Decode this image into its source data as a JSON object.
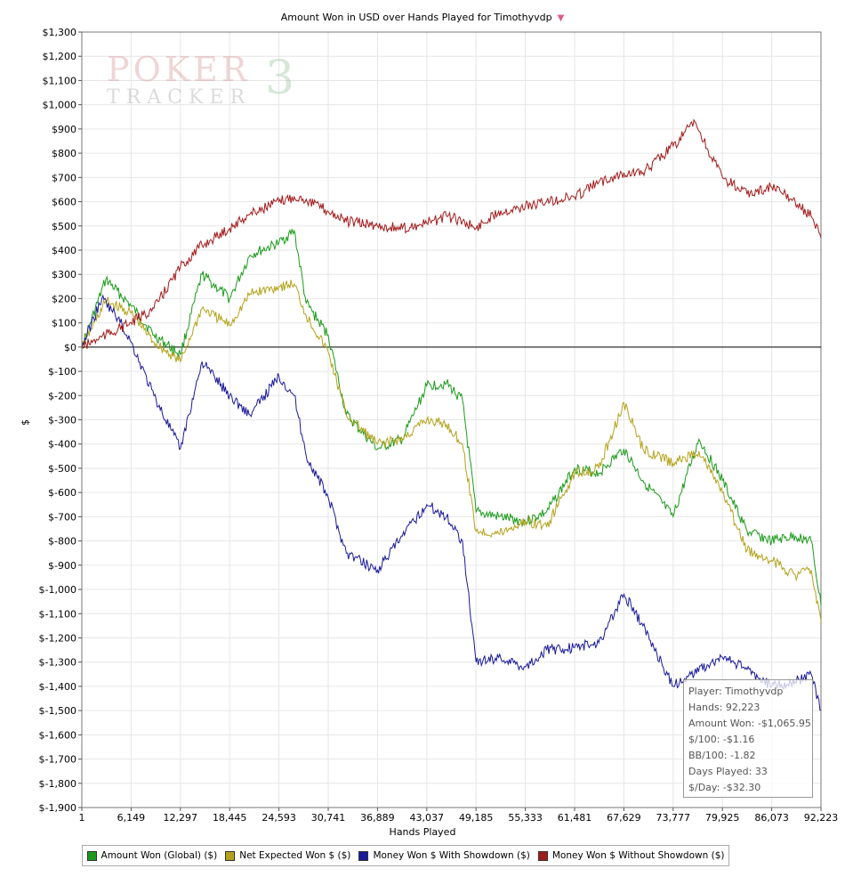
{
  "window": {
    "title": "Amount Won in USD over Hands Played for Timothyvdp",
    "title_icon": "filter-icon"
  },
  "logo": {
    "line1": "POKER",
    "line2": "TRACKER",
    "version": "3"
  },
  "chart_data": {
    "type": "line",
    "title": "Amount Won in USD over Hands Played for Timothyvdp",
    "xlabel": "Hands Played",
    "ylabel": "$",
    "xlim": [
      1,
      92223
    ],
    "ylim": [
      -1900,
      1300
    ],
    "x_ticks": [
      1,
      6149,
      12297,
      18445,
      24593,
      30741,
      36889,
      43037,
      49185,
      55333,
      61481,
      67629,
      73777,
      79925,
      86073,
      92223
    ],
    "x_tick_labels": [
      "1",
      "6,149",
      "12,297",
      "18,445",
      "24,593",
      "30,741",
      "36,889",
      "43,037",
      "49,185",
      "55,333",
      "61,481",
      "67,629",
      "73,777",
      "79,925",
      "86,073",
      "92,223"
    ],
    "y_ticks": [
      1300,
      1200,
      1100,
      1000,
      900,
      800,
      700,
      600,
      500,
      400,
      300,
      200,
      100,
      0,
      -100,
      -200,
      -300,
      -400,
      -500,
      -600,
      -700,
      -800,
      -900,
      -1000,
      -1100,
      -1200,
      -1300,
      -1400,
      -1500,
      -1600,
      -1700,
      -1800,
      -1900
    ],
    "y_tick_labels": [
      "$1,300",
      "$1,200",
      "$1,100",
      "$1,000",
      "$900",
      "$800",
      "$700",
      "$600",
      "$500",
      "$400",
      "$300",
      "$200",
      "$100",
      "$0",
      "$-100",
      "$-200",
      "$-300",
      "$-400",
      "$-500",
      "$-600",
      "$-700",
      "$-800",
      "$-900",
      "$-1,000",
      "$-1,100",
      "$-1,200",
      "$-1,300",
      "$-1,400",
      "$-1,500",
      "$-1,600",
      "$-1,700",
      "$-1,800",
      "$-1,900"
    ],
    "grid": true,
    "legend_position": "bottom",
    "series": [
      {
        "name": "Amount Won (Global) ($)",
        "color": "#1a9a1a",
        "x": [
          1,
          3000,
          6149,
          9000,
          12297,
          15000,
          18445,
          21000,
          24593,
          26500,
          28000,
          30741,
          33000,
          36889,
          40000,
          43037,
          45500,
          47500,
          49185,
          52000,
          55333,
          58000,
          61481,
          64500,
          67629,
          70000,
          73777,
          77000,
          79925,
          83000,
          86073,
          89000,
          91000,
          92223
        ],
        "y": [
          0,
          280,
          170,
          50,
          -30,
          300,
          200,
          380,
          430,
          480,
          180,
          50,
          -280,
          -420,
          -380,
          -160,
          -150,
          -220,
          -680,
          -700,
          -720,
          -680,
          -500,
          -520,
          -420,
          -550,
          -700,
          -380,
          -550,
          -760,
          -800,
          -780,
          -800,
          -1066
        ]
      },
      {
        "name": "Net Expected Won $ ($)",
        "color": "#b3a21a",
        "x": [
          1,
          3000,
          6149,
          9000,
          12297,
          15000,
          18445,
          21000,
          24593,
          26500,
          28000,
          30741,
          33000,
          36889,
          40000,
          43037,
          45500,
          47500,
          49185,
          52000,
          55333,
          58000,
          61481,
          64500,
          67629,
          70000,
          73777,
          77000,
          79925,
          83000,
          86073,
          89000,
          91000,
          92223
        ],
        "y": [
          0,
          190,
          140,
          20,
          -60,
          160,
          90,
          220,
          250,
          260,
          130,
          -20,
          -280,
          -400,
          -380,
          -300,
          -320,
          -400,
          -760,
          -770,
          -720,
          -740,
          -520,
          -500,
          -230,
          -420,
          -480,
          -430,
          -600,
          -840,
          -880,
          -940,
          -920,
          -1130
        ]
      },
      {
        "name": "Money Won $ With Showdown ($)",
        "color": "#1a1a9a",
        "x": [
          1,
          2500,
          4500,
          6149,
          9000,
          12297,
          15000,
          18445,
          21000,
          24593,
          26500,
          28000,
          30741,
          33000,
          36889,
          40000,
          43037,
          45500,
          47500,
          49185,
          52000,
          55333,
          58000,
          61481,
          64500,
          67629,
          70000,
          73777,
          76000,
          79925,
          83000,
          86073,
          89000,
          91000,
          92223
        ],
        "y": [
          0,
          200,
          120,
          20,
          -200,
          -420,
          -60,
          -200,
          -280,
          -120,
          -200,
          -450,
          -620,
          -850,
          -920,
          -780,
          -650,
          -700,
          -800,
          -1300,
          -1280,
          -1320,
          -1250,
          -1240,
          -1220,
          -1020,
          -1150,
          -1400,
          -1350,
          -1280,
          -1330,
          -1400,
          -1380,
          -1350,
          -1500
        ]
      },
      {
        "name": "Money Won $ Without Showdown ($)",
        "color": "#a31a1a",
        "x": [
          1,
          3000,
          6149,
          9000,
          12297,
          15000,
          18445,
          21000,
          24593,
          26500,
          28000,
          30741,
          33000,
          36889,
          40000,
          43037,
          45500,
          47500,
          49185,
          52000,
          55333,
          58000,
          61481,
          64500,
          67629,
          70000,
          73777,
          76500,
          78000,
          79925,
          83000,
          86073,
          89000,
          91000,
          92223
        ],
        "y": [
          0,
          50,
          100,
          160,
          330,
          420,
          490,
          550,
          600,
          620,
          610,
          560,
          520,
          500,
          490,
          510,
          540,
          520,
          490,
          560,
          580,
          600,
          620,
          680,
          720,
          720,
          830,
          930,
          820,
          700,
          630,
          660,
          600,
          540,
          450
        ]
      }
    ]
  },
  "tooltip": {
    "player": "Player: Timothyvdp",
    "hands": "Hands: 92,223",
    "amount_won": "Amount Won: -$1,065.95",
    "per_100": "$/100: -$1.16",
    "bb_per_100": "BB/100: -1.82",
    "days_played": "Days Played: 33",
    "per_day": "$/Day: -$32.30"
  }
}
